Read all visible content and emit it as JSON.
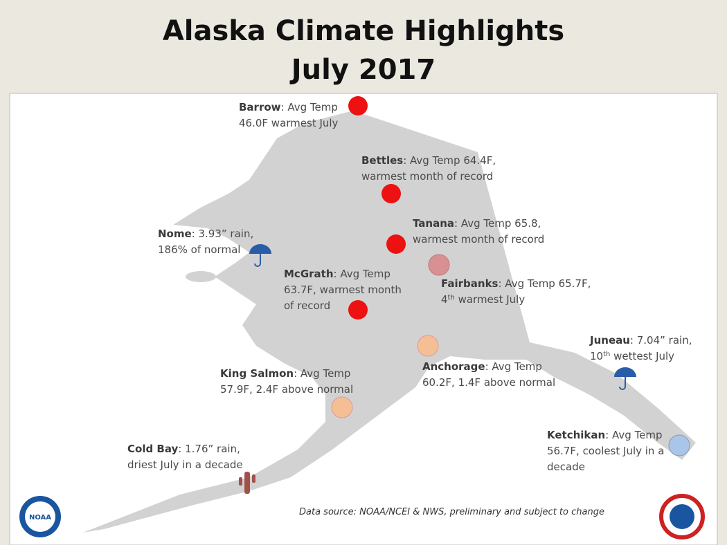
{
  "header": {
    "title": "Alaska Climate Highlights",
    "subtitle": "July 2017"
  },
  "stations": [
    {
      "name": "Barrow",
      "lines": [
        ": Avg Temp",
        "46.0F warmest July"
      ]
    },
    {
      "name": "Bettles",
      "lines": [
        ": Avg Temp 64.4F,",
        "warmest month of record"
      ]
    },
    {
      "name": "Nome",
      "lines": [
        ": 3.93” rain,",
        "186% of normal"
      ]
    },
    {
      "name": "Tanana",
      "lines": [
        ": Avg Temp 65.8,",
        "warmest month of record"
      ]
    },
    {
      "name": "McGrath",
      "lines": [
        ": Avg Temp",
        "63.7F, warmest month",
        "of record"
      ]
    },
    {
      "name": "Fairbanks",
      "lines": [
        ": Avg Temp 65.7F,",
        {
          "parts": [
            {
              "text": "4"
            },
            {
              "text": "th",
              "sup": true
            },
            {
              "text": " warmest July"
            }
          ]
        }
      ]
    },
    {
      "name": "Juneau",
      "lines": [
        ": 7.04” rain,",
        {
          "parts": [
            {
              "text": "10"
            },
            {
              "text": "th",
              "sup": true
            },
            {
              "text": " wettest July"
            }
          ]
        }
      ]
    },
    {
      "name": "Anchorage",
      "lines": [
        ": Avg Temp",
        "60.2F, 1.4F above normal"
      ]
    },
    {
      "name": "King Salmon",
      "lines": [
        ": Avg Temp",
        "57.9F, 2.4F above normal"
      ]
    },
    {
      "name": "Ketchikan",
      "lines": [
        ": Avg Temp",
        "56.7F, coolest July in a",
        "decade"
      ]
    },
    {
      "name": "Cold Bay",
      "lines": [
        ": 1.76” rain,",
        "driest July in a decade"
      ]
    }
  ],
  "footer": {
    "source": "Data source: NOAA/NCEI & NWS, preliminary and subject to change",
    "logo_left": "NOAA"
  }
}
